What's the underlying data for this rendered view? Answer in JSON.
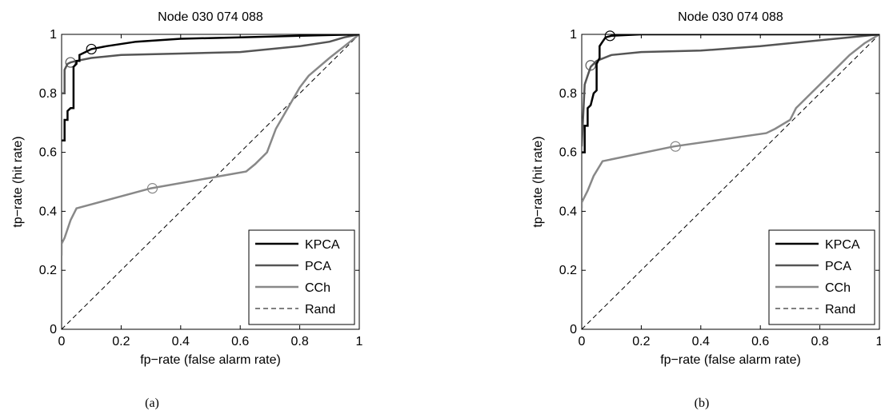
{
  "chart_data": [
    {
      "type": "line",
      "title": "Node 030 074 088",
      "xlabel": "fp−rate (false alarm rate)",
      "ylabel": "tp−rate (hit rate)",
      "xlim": [
        0,
        1
      ],
      "ylim": [
        0,
        1
      ],
      "xticks": [
        "0",
        "0.2",
        "0.4",
        "0.6",
        "0.8",
        "1"
      ],
      "yticks": [
        "0",
        "0.2",
        "0.4",
        "0.6",
        "0.8",
        "1"
      ],
      "grid": false,
      "legend_position": "bottom-right",
      "caption": "(a)",
      "series": [
        {
          "name": "KPCA",
          "color": "#000000",
          "style": "solid",
          "points": [
            [
              0.0,
              0.64
            ],
            [
              0.01,
              0.64
            ],
            [
              0.01,
              0.71
            ],
            [
              0.02,
              0.71
            ],
            [
              0.02,
              0.74
            ],
            [
              0.03,
              0.75
            ],
            [
              0.04,
              0.75
            ],
            [
              0.04,
              0.89
            ],
            [
              0.05,
              0.9
            ],
            [
              0.05,
              0.91
            ],
            [
              0.06,
              0.91
            ],
            [
              0.06,
              0.93
            ],
            [
              0.08,
              0.94
            ],
            [
              0.1,
              0.95
            ],
            [
              0.15,
              0.96
            ],
            [
              0.25,
              0.975
            ],
            [
              0.4,
              0.985
            ],
            [
              0.6,
              0.99
            ],
            [
              0.8,
              0.995
            ],
            [
              1.0,
              1.0
            ]
          ],
          "marker": [
            0.1,
            0.95
          ]
        },
        {
          "name": "PCA",
          "color": "#555555",
          "style": "solid",
          "points": [
            [
              0.0,
              0.8
            ],
            [
              0.01,
              0.8
            ],
            [
              0.01,
              0.88
            ],
            [
              0.02,
              0.9
            ],
            [
              0.03,
              0.905
            ],
            [
              0.05,
              0.91
            ],
            [
              0.1,
              0.92
            ],
            [
              0.2,
              0.93
            ],
            [
              0.4,
              0.935
            ],
            [
              0.6,
              0.94
            ],
            [
              0.8,
              0.96
            ],
            [
              0.9,
              0.975
            ],
            [
              0.95,
              0.99
            ],
            [
              1.0,
              1.0
            ]
          ],
          "marker": [
            0.03,
            0.905
          ]
        },
        {
          "name": "CCh",
          "color": "#888888",
          "style": "solid",
          "points": [
            [
              0.0,
              0.25
            ],
            [
              0.0,
              0.29
            ],
            [
              0.01,
              0.31
            ],
            [
              0.03,
              0.37
            ],
            [
              0.05,
              0.41
            ],
            [
              0.3,
              0.478
            ],
            [
              0.62,
              0.535
            ],
            [
              0.65,
              0.56
            ],
            [
              0.69,
              0.6
            ],
            [
              0.72,
              0.68
            ],
            [
              0.8,
              0.82
            ],
            [
              0.83,
              0.86
            ],
            [
              0.9,
              0.92
            ],
            [
              0.95,
              0.96
            ],
            [
              1.0,
              1.0
            ]
          ],
          "marker": [
            0.305,
            0.478
          ]
        },
        {
          "name": "Rand",
          "color": "#000000",
          "style": "dashed",
          "points": [
            [
              0,
              0
            ],
            [
              1,
              1
            ]
          ]
        }
      ]
    },
    {
      "type": "line",
      "title": "Node 030 074 088",
      "xlabel": "fp−rate (false alarm rate)",
      "ylabel": "tp−rate (hit rate)",
      "xlim": [
        0,
        1
      ],
      "ylim": [
        0,
        1
      ],
      "xticks": [
        "0",
        "0.2",
        "0.4",
        "0.6",
        "0.8",
        "1"
      ],
      "yticks": [
        "0",
        "0.2",
        "0.4",
        "0.6",
        "0.8",
        "1"
      ],
      "grid": false,
      "legend_position": "bottom-right",
      "caption": "(b)",
      "series": [
        {
          "name": "KPCA",
          "color": "#000000",
          "style": "solid",
          "points": [
            [
              0.0,
              0.6
            ],
            [
              0.01,
              0.6
            ],
            [
              0.01,
              0.69
            ],
            [
              0.02,
              0.69
            ],
            [
              0.02,
              0.75
            ],
            [
              0.03,
              0.76
            ],
            [
              0.04,
              0.8
            ],
            [
              0.05,
              0.81
            ],
            [
              0.05,
              0.9
            ],
            [
              0.06,
              0.92
            ],
            [
              0.06,
              0.96
            ],
            [
              0.07,
              0.975
            ],
            [
              0.08,
              0.99
            ],
            [
              0.1,
              0.995
            ],
            [
              0.2,
              1.0
            ],
            [
              1.0,
              1.0
            ]
          ],
          "marker": [
            0.095,
            0.995
          ]
        },
        {
          "name": "PCA",
          "color": "#555555",
          "style": "solid",
          "points": [
            [
              0.0,
              0.62
            ],
            [
              0.01,
              0.83
            ],
            [
              0.02,
              0.86
            ],
            [
              0.03,
              0.89
            ],
            [
              0.05,
              0.91
            ],
            [
              0.1,
              0.93
            ],
            [
              0.2,
              0.94
            ],
            [
              0.4,
              0.945
            ],
            [
              0.6,
              0.96
            ],
            [
              0.8,
              0.98
            ],
            [
              0.9,
              0.99
            ],
            [
              1.0,
              1.0
            ]
          ],
          "marker": [
            0.03,
            0.895
          ]
        },
        {
          "name": "CCh",
          "color": "#888888",
          "style": "solid",
          "points": [
            [
              0.0,
              0.41
            ],
            [
              0.0,
              0.43
            ],
            [
              0.01,
              0.45
            ],
            [
              0.02,
              0.47
            ],
            [
              0.04,
              0.52
            ],
            [
              0.07,
              0.57
            ],
            [
              0.31,
              0.62
            ],
            [
              0.62,
              0.665
            ],
            [
              0.65,
              0.68
            ],
            [
              0.7,
              0.71
            ],
            [
              0.72,
              0.75
            ],
            [
              0.8,
              0.83
            ],
            [
              0.85,
              0.88
            ],
            [
              0.9,
              0.93
            ],
            [
              0.95,
              0.97
            ],
            [
              1.0,
              1.0
            ]
          ],
          "marker": [
            0.315,
            0.62
          ]
        },
        {
          "name": "Rand",
          "color": "#000000",
          "style": "dashed",
          "points": [
            [
              0,
              0
            ],
            [
              1,
              1
            ]
          ]
        }
      ]
    }
  ]
}
